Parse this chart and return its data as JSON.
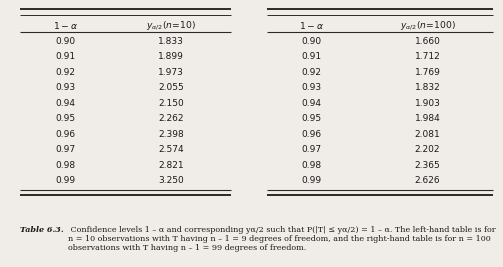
{
  "left_alpha": [
    "0.90",
    "0.91",
    "0.92",
    "0.93",
    "0.94",
    "0.95",
    "0.96",
    "0.97",
    "0.98",
    "0.99"
  ],
  "left_y": [
    "1.833",
    "1.899",
    "1.973",
    "2.055",
    "2.150",
    "2.262",
    "2.398",
    "2.574",
    "2.821",
    "3.250"
  ],
  "right_alpha": [
    "0.90",
    "0.91",
    "0.92",
    "0.93",
    "0.94",
    "0.95",
    "0.96",
    "0.97",
    "0.98",
    "0.99"
  ],
  "right_y": [
    "1.660",
    "1.712",
    "1.769",
    "1.832",
    "1.903",
    "1.984",
    "2.081",
    "2.202",
    "2.365",
    "2.626"
  ],
  "bg_color": "#f0ede8",
  "text_color": "#1a1a1a",
  "caption_bold": "Table 6.3.",
  "caption_rest": " Confidence levels 1 – α and corresponding yα/2 such that P(|T| ≤ yα/2) = 1 – α. The left-hand table is for n = 10 observations with T having n – 1 = 9 degrees of freedom, and the right-hand table is for n = 100 observations with T having n – 1 = 99 degrees of freedom."
}
